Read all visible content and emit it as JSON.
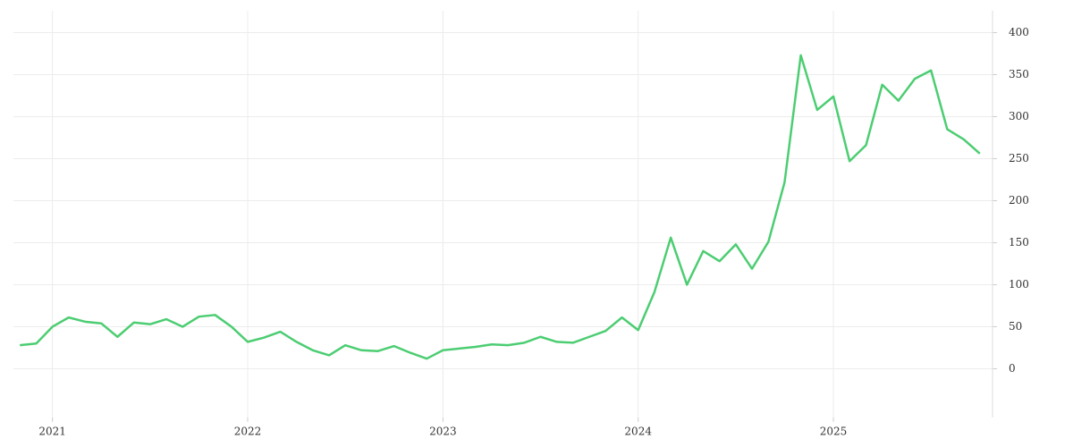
{
  "chart_data": {
    "type": "line",
    "x": [
      2020.833,
      2020.917,
      2021,
      2021.083,
      2021.167,
      2021.25,
      2021.333,
      2021.417,
      2021.5,
      2021.583,
      2021.667,
      2021.75,
      2021.833,
      2021.917,
      2022,
      2022.083,
      2022.167,
      2022.25,
      2022.333,
      2022.417,
      2022.5,
      2022.583,
      2022.667,
      2022.75,
      2022.833,
      2022.917,
      2023,
      2023.083,
      2023.167,
      2023.25,
      2023.333,
      2023.417,
      2023.5,
      2023.583,
      2023.667,
      2023.75,
      2023.833,
      2023.917,
      2024,
      2024.083,
      2024.167,
      2024.25,
      2024.333,
      2024.417,
      2024.5,
      2024.583,
      2024.667,
      2024.75,
      2024.833,
      2024.917,
      2025,
      2025.083,
      2025.167,
      2025.25,
      2025.333,
      2025.417,
      2025.5,
      2025.583,
      2025.667,
      2025.75
    ],
    "series": [
      {
        "color": "#4ccd72",
        "values": [
          28,
          30,
          50,
          61,
          56,
          54,
          38,
          55,
          53,
          59,
          50,
          62,
          64,
          50,
          32,
          37,
          44,
          32,
          22,
          16,
          28,
          22,
          21,
          27,
          19,
          12,
          22,
          24,
          26,
          29,
          28,
          31,
          38,
          32,
          31,
          38,
          45,
          61,
          46,
          91,
          156,
          100,
          140,
          128,
          148,
          119,
          151,
          222,
          373,
          308,
          324,
          247,
          266,
          338,
          319,
          345,
          355,
          285,
          273,
          256
        ]
      }
    ],
    "xlim": [
      2020.8,
      2025.815
    ],
    "xticks": [
      2021,
      2022,
      2023,
      2024,
      2025
    ],
    "ylim": [
      -58,
      426
    ],
    "yticks": [
      0,
      50,
      100,
      150,
      200,
      250,
      300,
      350,
      400
    ],
    "grid": true
  }
}
